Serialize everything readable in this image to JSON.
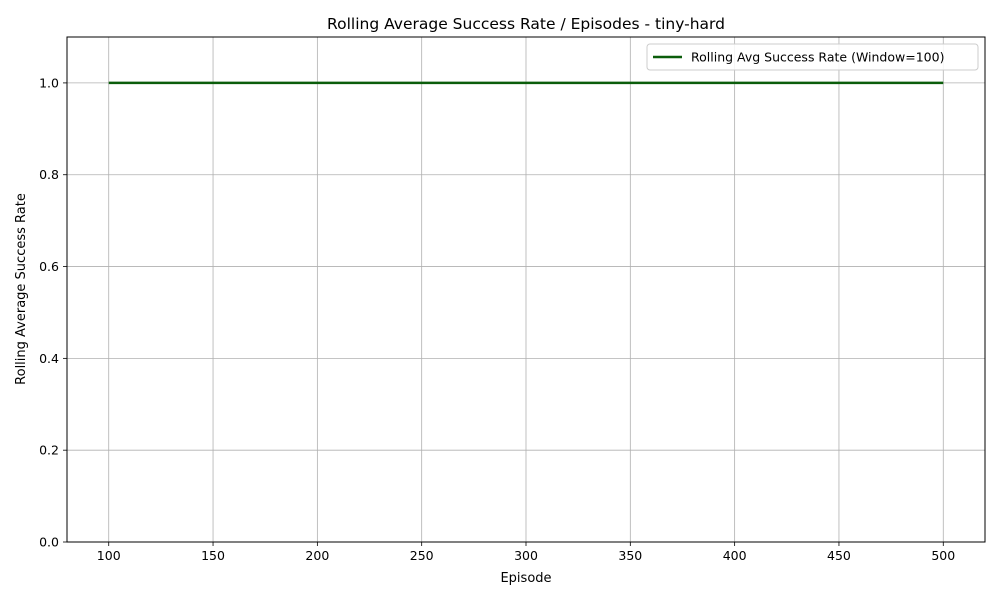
{
  "chart_data": {
    "type": "line",
    "title": "Rolling Average Success Rate / Episodes - tiny-hard",
    "xlabel": "Episode",
    "ylabel": "Rolling Average Success Rate",
    "xlim": [
      80,
      520
    ],
    "ylim": [
      0.0,
      1.1
    ],
    "x_ticks": [
      100,
      150,
      200,
      250,
      300,
      350,
      400,
      450,
      500
    ],
    "y_ticks": [
      0.0,
      0.2,
      0.4,
      0.6,
      0.8,
      1.0
    ],
    "x_tick_labels": [
      "100",
      "150",
      "200",
      "250",
      "300",
      "350",
      "400",
      "450",
      "500"
    ],
    "y_tick_labels": [
      "0.0",
      "0.2",
      "0.4",
      "0.6",
      "0.8",
      "1.0"
    ],
    "grid": true,
    "legend_position": "top-right",
    "series": [
      {
        "name": "Rolling Avg Success Rate (Window=100)",
        "color": "#0b5d0b",
        "x": [
          100,
          150,
          200,
          250,
          300,
          350,
          400,
          450,
          500
        ],
        "y": [
          1.0,
          1.0,
          1.0,
          1.0,
          1.0,
          1.0,
          1.0,
          1.0,
          1.0
        ]
      }
    ]
  }
}
